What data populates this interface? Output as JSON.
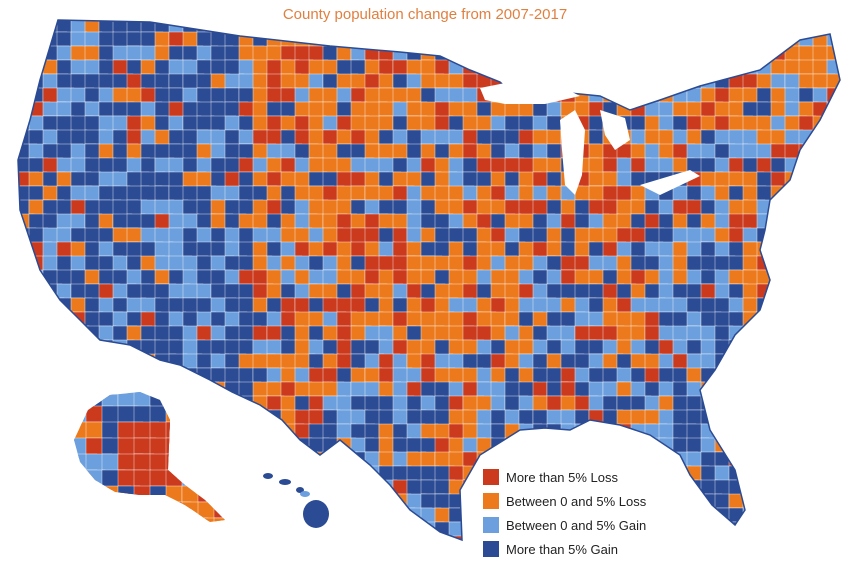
{
  "title": "County population change from 2007-2017",
  "legend": [
    {
      "label": "More than 5% Loss",
      "color": "#cc3a1e",
      "category": "loss_gt5"
    },
    {
      "label": "Between 0 and 5% Loss",
      "color": "#ec7a1c",
      "category": "loss_0_5"
    },
    {
      "label": "Between 0 and 5% Gain",
      "color": "#6c9fde",
      "category": "gain_0_5"
    },
    {
      "label": "More than 5% Gain",
      "color": "#2b4b94",
      "category": "gain_gt5"
    }
  ],
  "colors": {
    "loss_gt5": "#cc3a1e",
    "loss_0_5": "#ec7a1c",
    "gain_0_5": "#6c9fde",
    "gain_gt5": "#2b4b94",
    "county_border": "#ffffff"
  }
}
